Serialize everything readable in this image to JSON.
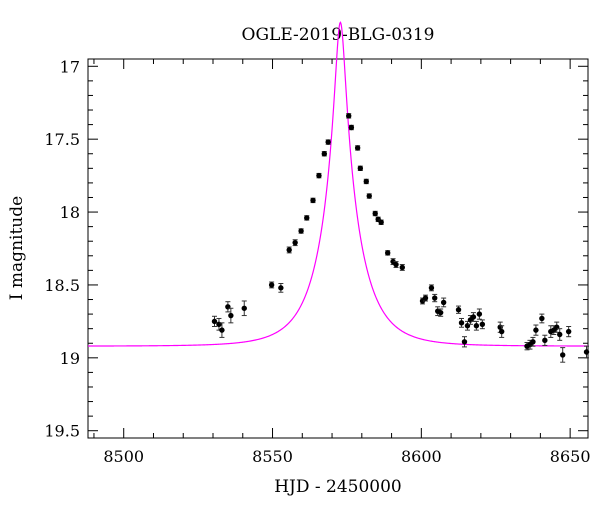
{
  "chart_data": {
    "type": "scatter",
    "title": "OGLE-2019-BLG-0319",
    "xlabel": "HJD - 2450000",
    "ylabel": "I magnitude",
    "xlim": [
      8488,
      8656
    ],
    "ylim": [
      19.55,
      16.95
    ],
    "y_inverted": true,
    "xticks": [
      8500,
      8550,
      8600,
      8650
    ],
    "yticks": [
      17,
      17.5,
      18,
      18.5,
      19,
      19.5
    ],
    "xtick_labels": [
      "8500",
      "8550",
      "8600",
      "8650"
    ],
    "ytick_labels": [
      "17",
      "17.5",
      "18",
      "18.5",
      "19",
      "19.5"
    ],
    "grid": false,
    "model_color": "#ff00ff",
    "point_color": "#000000",
    "model": {
      "name": "model",
      "t0": 8572.8,
      "tE": 12.4,
      "u0": 0.13,
      "baseline": 18.92
    },
    "series": [
      {
        "name": "data",
        "points": [
          [
            8530.5,
            18.75,
            0.035
          ],
          [
            8532.0,
            18.77,
            0.04
          ],
          [
            8533.0,
            18.81,
            0.05
          ],
          [
            8535.0,
            18.65,
            0.035
          ],
          [
            8536.0,
            18.71,
            0.05
          ],
          [
            8540.5,
            18.66,
            0.05
          ],
          [
            8549.7,
            18.5,
            0.02
          ],
          [
            8552.8,
            18.52,
            0.03
          ],
          [
            8555.6,
            18.26,
            0.02
          ],
          [
            8557.6,
            18.21,
            0.02
          ],
          [
            8559.6,
            18.13,
            0.015
          ],
          [
            8561.5,
            18.04,
            0.015
          ],
          [
            8563.6,
            17.92,
            0.015
          ],
          [
            8565.6,
            17.75,
            0.015
          ],
          [
            8567.4,
            17.6,
            0.015
          ],
          [
            8568.7,
            17.52,
            0.015
          ],
          [
            8575.6,
            17.34,
            0.015
          ],
          [
            8576.5,
            17.42,
            0.015
          ],
          [
            8578.6,
            17.56,
            0.015
          ],
          [
            8579.5,
            17.7,
            0.015
          ],
          [
            8581.5,
            17.79,
            0.015
          ],
          [
            8582.5,
            17.89,
            0.015
          ],
          [
            8584.5,
            18.01,
            0.015
          ],
          [
            8585.5,
            18.05,
            0.015
          ],
          [
            8586.5,
            18.07,
            0.015
          ],
          [
            8588.7,
            18.28,
            0.015
          ],
          [
            8590.5,
            18.34,
            0.02
          ],
          [
            8591.5,
            18.36,
            0.02
          ],
          [
            8593.6,
            18.38,
            0.02
          ],
          [
            8600.4,
            18.61,
            0.02
          ],
          [
            8601.4,
            18.59,
            0.02
          ],
          [
            8603.4,
            18.52,
            0.02
          ],
          [
            8604.5,
            18.59,
            0.025
          ],
          [
            8605.5,
            18.68,
            0.03
          ],
          [
            8606.5,
            18.69,
            0.025
          ],
          [
            8607.5,
            18.62,
            0.03
          ],
          [
            8612.5,
            18.67,
            0.025
          ],
          [
            8613.5,
            18.76,
            0.03
          ],
          [
            8614.5,
            18.89,
            0.035
          ],
          [
            8615.5,
            18.78,
            0.03
          ],
          [
            8616.5,
            18.74,
            0.03
          ],
          [
            8617.5,
            18.72,
            0.03
          ],
          [
            8618.5,
            18.78,
            0.03
          ],
          [
            8619.5,
            18.7,
            0.035
          ],
          [
            8620.5,
            18.77,
            0.03
          ],
          [
            8626.5,
            18.79,
            0.035
          ],
          [
            8627.0,
            18.82,
            0.04
          ],
          [
            8635.5,
            18.92,
            0.025
          ],
          [
            8636.5,
            18.91,
            0.03
          ],
          [
            8637.5,
            18.89,
            0.03
          ],
          [
            8638.5,
            18.81,
            0.035
          ],
          [
            8640.5,
            18.73,
            0.03
          ],
          [
            8641.5,
            18.88,
            0.035
          ],
          [
            8643.5,
            18.82,
            0.04
          ],
          [
            8644.5,
            18.81,
            0.03
          ],
          [
            8645.5,
            18.79,
            0.035
          ],
          [
            8646.5,
            18.84,
            0.04
          ],
          [
            8647.5,
            18.98,
            0.05
          ],
          [
            8649.5,
            18.82,
            0.035
          ],
          [
            8655.5,
            18.96,
            0.04
          ]
        ]
      }
    ]
  }
}
